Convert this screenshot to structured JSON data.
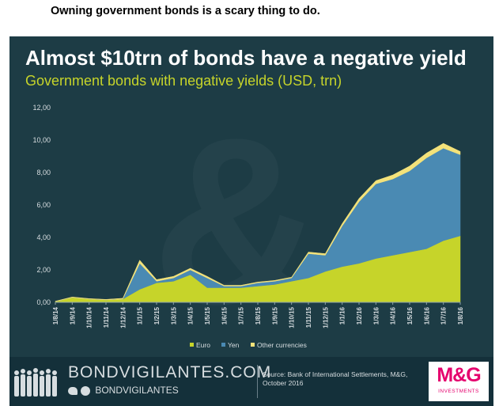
{
  "caption": "Owning government bonds is a scary thing to do.",
  "title": "Almost $10trn of bonds have a negative yield",
  "subtitle": "Government bonds with negative yields (USD, trn)",
  "footer": {
    "brand": "BONDVIGILANTES.COM",
    "social": "BONDVIGILANTES",
    "source": "Source: Bank of International Settlements, M&G, October 2016",
    "logo": "M&G",
    "logo_sub": "INVESTMENTS"
  },
  "colors": {
    "background": "#1d3c45",
    "euro": "#c6d42a",
    "yen": "#4a8ab3",
    "other": "#f3e27a",
    "title": "#ffffff",
    "subtitle": "#c6d42a"
  },
  "chart_data": {
    "type": "area",
    "stacked": true,
    "title": "Almost $10trn of bonds have a negative yield",
    "subtitle": "Government bonds with negative yields (USD, trn)",
    "xlabel": "",
    "ylabel": "",
    "ylim": [
      0,
      12
    ],
    "yticks": [
      "0,00",
      "2,00",
      "4,00",
      "6,00",
      "8,00",
      "10,00",
      "12,00"
    ],
    "xticks": [
      "1/8/14",
      "1/9/14",
      "1/10/14",
      "1/11/14",
      "1/12/14",
      "1/1/15",
      "1/2/15",
      "1/3/15",
      "1/4/15",
      "1/5/15",
      "1/6/15",
      "1/7/15",
      "1/8/15",
      "1/9/15",
      "1/10/15",
      "1/11/15",
      "1/12/15",
      "1/1/16",
      "1/2/16",
      "1/3/16",
      "1/4/16",
      "1/5/16",
      "1/6/16",
      "1/7/16",
      "1/8/16"
    ],
    "legend": [
      "Euro",
      "Yen",
      "Other currencies"
    ],
    "legend_position": "bottom",
    "grid": false,
    "x": [
      "1/8/14",
      "1/9/14",
      "1/10/14",
      "1/11/14",
      "1/12/14",
      "1/1/15",
      "1/2/15",
      "1/3/15",
      "1/4/15",
      "1/5/15",
      "1/6/15",
      "1/7/15",
      "1/8/15",
      "1/9/15",
      "1/10/15",
      "1/11/15",
      "1/12/15",
      "1/1/16",
      "1/2/16",
      "1/3/16",
      "1/4/16",
      "1/5/16",
      "1/6/16",
      "1/7/16",
      "1/8/16"
    ],
    "series": [
      {
        "name": "Euro",
        "values": [
          0.05,
          0.3,
          0.2,
          0.15,
          0.2,
          0.8,
          1.2,
          1.3,
          1.7,
          0.9,
          0.9,
          0.9,
          1.0,
          1.1,
          1.3,
          1.5,
          1.9,
          2.2,
          2.4,
          2.7,
          2.9,
          3.1,
          3.3,
          3.8,
          4.1
        ]
      },
      {
        "name": "Yen",
        "values": [
          0.0,
          0.0,
          0.0,
          0.0,
          0.0,
          1.6,
          0.1,
          0.2,
          0.3,
          0.6,
          0.1,
          0.1,
          0.2,
          0.2,
          0.2,
          1.5,
          1.0,
          2.5,
          3.8,
          4.6,
          4.7,
          5.0,
          5.6,
          5.7,
          5.0
        ]
      },
      {
        "name": "Other currencies",
        "values": [
          0.02,
          0.03,
          0.03,
          0.03,
          0.05,
          0.2,
          0.1,
          0.1,
          0.1,
          0.1,
          0.05,
          0.05,
          0.05,
          0.05,
          0.05,
          0.1,
          0.1,
          0.15,
          0.2,
          0.2,
          0.25,
          0.3,
          0.3,
          0.3,
          0.2
        ]
      }
    ]
  }
}
